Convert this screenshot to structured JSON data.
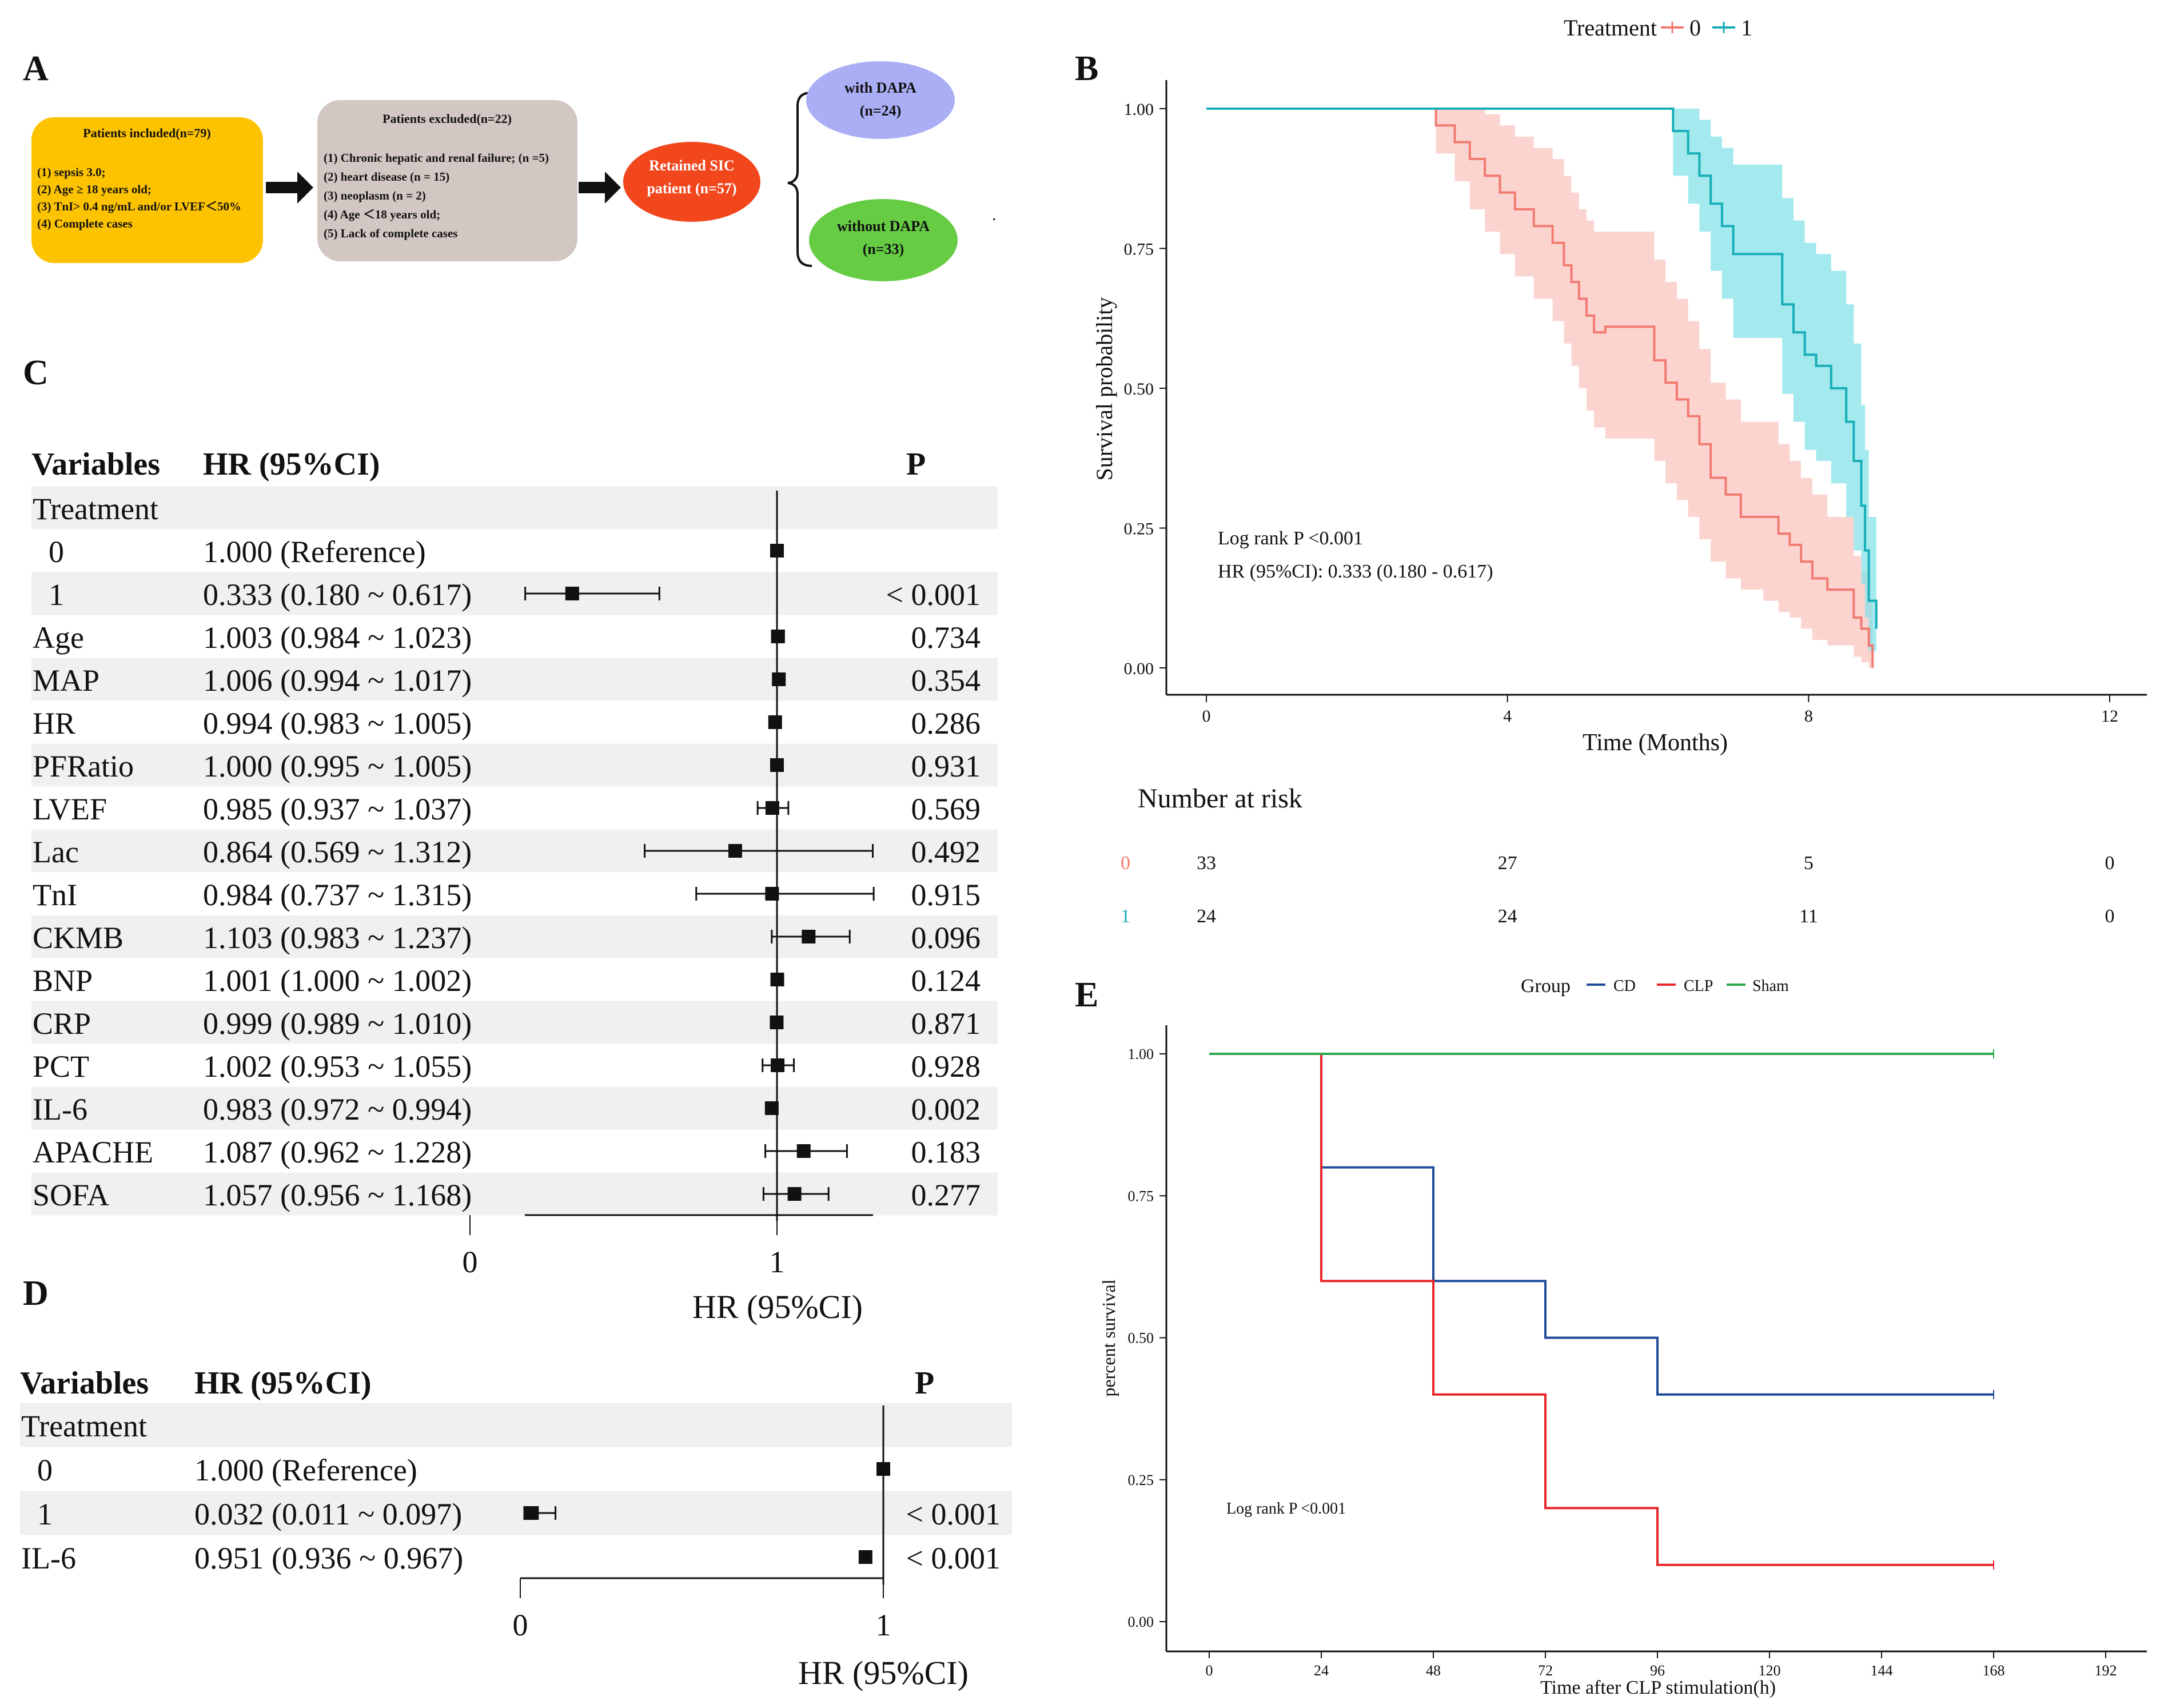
{
  "panels": {
    "A": "A",
    "B": "B",
    "C": "C",
    "D": "D",
    "E": "E"
  },
  "colors": {
    "included": "#FDC300",
    "excluded": "#D2C7C2",
    "retained": "#F2461D",
    "with_dapa": "#A9AEF5",
    "without_dapa": "#66CC44",
    "treat0": "#F27A70",
    "treat0_fill": "#FAC5C0",
    "treat1": "#17AEB8",
    "treat1_fill": "#86E2E8",
    "cd": "#1F4B99",
    "clp": "#E8262A",
    "sham": "#2AA84A",
    "stripe": "#EEF1F0"
  },
  "flowchart": {
    "included": {
      "title": "Patients included(n=79)",
      "lines": [
        "(1)  sepsis 3.0;",
        "(2) Age ≥ 18 years old;",
        "(3) TnI> 0.4 ng/mL and/or LVEF＜50%",
        "(4) Complete cases"
      ]
    },
    "excluded": {
      "title": "Patients excluded(n=22)",
      "lines": [
        "(1) Chronic hepatic and renal failure; (n =5)",
        "(2) heart disease (n = 15)",
        "(3) neoplasm (n = 2)",
        "(4) Age ＜18 years old;",
        "(5) Lack of complete cases"
      ]
    },
    "retained": [
      "Retained SIC",
      "patient (n=57)"
    ],
    "with_dapa": [
      "with DAPA",
      "(n=24)"
    ],
    "without_dapa": [
      "without DAPA",
      "(n=33)"
    ],
    "dot": "."
  },
  "forest_c": {
    "headers": {
      "variables": "Variables",
      "hr": "HR (95%CI)",
      "p": "P"
    },
    "rows": [
      {
        "label": "Treatment",
        "hr_text": "",
        "p": "",
        "hr": null,
        "lo": null,
        "hi": null,
        "indent": false
      },
      {
        "label": "0",
        "hr_text": "1.000 (Reference)",
        "p": "",
        "hr": 1.0,
        "lo": 1.0,
        "hi": 1.0,
        "indent": true
      },
      {
        "label": "1",
        "hr_text": "0.333 (0.180 ~ 0.617)",
        "p": "< 0.001",
        "hr": 0.333,
        "lo": 0.18,
        "hi": 0.617,
        "indent": true
      },
      {
        "label": "Age",
        "hr_text": "1.003 (0.984 ~ 1.023)",
        "p": "0.734",
        "hr": 1.003,
        "lo": 0.984,
        "hi": 1.023,
        "indent": false
      },
      {
        "label": "MAP",
        "hr_text": "1.006 (0.994 ~ 1.017)",
        "p": "0.354",
        "hr": 1.006,
        "lo": 0.994,
        "hi": 1.017,
        "indent": false
      },
      {
        "label": "HR",
        "hr_text": "0.994 (0.983 ~ 1.005)",
        "p": "0.286",
        "hr": 0.994,
        "lo": 0.983,
        "hi": 1.005,
        "indent": false
      },
      {
        "label": "PFRatio",
        "hr_text": "1.000 (0.995 ~ 1.005)",
        "p": "0.931",
        "hr": 1.0,
        "lo": 0.995,
        "hi": 1.005,
        "indent": false
      },
      {
        "label": "LVEF",
        "hr_text": "0.985 (0.937 ~ 1.037)",
        "p": "0.569",
        "hr": 0.985,
        "lo": 0.937,
        "hi": 1.037,
        "indent": false
      },
      {
        "label": "Lac",
        "hr_text": "0.864 (0.569 ~ 1.312)",
        "p": "0.492",
        "hr": 0.864,
        "lo": 0.569,
        "hi": 1.312,
        "indent": false
      },
      {
        "label": "TnI",
        "hr_text": "0.984 (0.737 ~ 1.315)",
        "p": "0.915",
        "hr": 0.984,
        "lo": 0.737,
        "hi": 1.315,
        "indent": false
      },
      {
        "label": "CKMB",
        "hr_text": "1.103 (0.983 ~ 1.237)",
        "p": "0.096",
        "hr": 1.103,
        "lo": 0.983,
        "hi": 1.237,
        "indent": false
      },
      {
        "label": "BNP",
        "hr_text": "1.001 (1.000 ~ 1.002)",
        "p": "0.124",
        "hr": 1.001,
        "lo": 1.0,
        "hi": 1.002,
        "indent": false
      },
      {
        "label": "CRP",
        "hr_text": "0.999 (0.989 ~ 1.010)",
        "p": "0.871",
        "hr": 0.999,
        "lo": 0.989,
        "hi": 1.01,
        "indent": false
      },
      {
        "label": "PCT",
        "hr_text": "1.002 (0.953 ~ 1.055)",
        "p": "0.928",
        "hr": 1.002,
        "lo": 0.953,
        "hi": 1.055,
        "indent": false
      },
      {
        "label": "IL-6",
        "hr_text": "0.983 (0.972 ~ 0.994)",
        "p": "0.002",
        "hr": 0.983,
        "lo": 0.972,
        "hi": 0.994,
        "indent": false
      },
      {
        "label": "APACHE",
        "hr_text": "1.087 (0.962 ~ 1.228)",
        "p": "0.183",
        "hr": 1.087,
        "lo": 0.962,
        "hi": 1.228,
        "indent": false
      },
      {
        "label": "SOFA",
        "hr_text": "1.057 (0.956 ~ 1.168)",
        "p": "0.277",
        "hr": 1.057,
        "lo": 0.956,
        "hi": 1.168,
        "indent": false
      }
    ],
    "xlabel": "HR (95%CI)",
    "ticks": [
      "0",
      "1"
    ]
  },
  "forest_d": {
    "headers": {
      "variables": "Variables",
      "hr": "HR (95%CI)",
      "p": "P"
    },
    "rows": [
      {
        "label": "Treatment",
        "hr_text": "",
        "p": "",
        "hr": null,
        "lo": null,
        "hi": null,
        "indent": false
      },
      {
        "label": "0",
        "hr_text": "1.000 (Reference)",
        "p": "",
        "hr": 1.0,
        "lo": 1.0,
        "hi": 1.0,
        "indent": true
      },
      {
        "label": "1",
        "hr_text": "0.032 (0.011 ~ 0.097)",
        "p": "< 0.001",
        "hr": 0.032,
        "lo": 0.011,
        "hi": 0.097,
        "indent": true
      },
      {
        "label": "IL-6",
        "hr_text": "0.951 (0.936 ~ 0.967)",
        "p": "< 0.001",
        "hr": 0.951,
        "lo": 0.936,
        "hi": 0.967,
        "indent": false
      }
    ],
    "xlabel": "HR (95%CI)",
    "ticks": [
      "0",
      "1"
    ]
  },
  "chart_data": [
    {
      "id": "B",
      "type": "line",
      "title": "",
      "legend_title": "Treatment",
      "legend": [
        "0",
        "1"
      ],
      "xlabel": "Time (Months)",
      "ylabel": "Survival probability",
      "xlim": [
        0,
        12
      ],
      "ylim": [
        0,
        1
      ],
      "xticks": [
        "0",
        "4",
        "8",
        "12"
      ],
      "yticks": [
        "0.00",
        "0.25",
        "0.50",
        "0.75",
        "1.00"
      ],
      "annotations": [
        "Log rank P <0.001",
        "HR (95%CI): 0.333 (0.180 - 0.617)"
      ],
      "series": [
        {
          "name": "0",
          "x": [
            0,
            3.05,
            3.05,
            3.3,
            3.5,
            3.7,
            3.9,
            4.1,
            4.35,
            4.6,
            4.75,
            4.85,
            4.95,
            5.05,
            5.15,
            5.3,
            5.55,
            5.95,
            6.1,
            6.25,
            6.4,
            6.55,
            6.7,
            6.9,
            7.1,
            7.4,
            7.6,
            7.75,
            7.9,
            8.05,
            8.25,
            8.45,
            8.6,
            8.7,
            8.8,
            8.85
          ],
          "y": [
            1.0,
            1.0,
            0.97,
            0.94,
            0.91,
            0.88,
            0.85,
            0.82,
            0.79,
            0.76,
            0.72,
            0.69,
            0.66,
            0.63,
            0.6,
            0.61,
            0.61,
            0.55,
            0.51,
            0.48,
            0.45,
            0.4,
            0.34,
            0.31,
            0.27,
            0.27,
            0.24,
            0.22,
            0.19,
            0.16,
            0.14,
            0.14,
            0.09,
            0.07,
            0.04,
            0.0
          ],
          "lower": [
            1.0,
            1.0,
            0.92,
            0.87,
            0.82,
            0.78,
            0.74,
            0.7,
            0.66,
            0.62,
            0.58,
            0.54,
            0.5,
            0.46,
            0.43,
            0.41,
            0.41,
            0.37,
            0.33,
            0.3,
            0.27,
            0.23,
            0.19,
            0.16,
            0.14,
            0.12,
            0.1,
            0.09,
            0.07,
            0.05,
            0.04,
            0.04,
            0.02,
            0.01,
            0.0,
            0.0
          ],
          "upper": [
            1.0,
            1.0,
            1.0,
            1.0,
            1.0,
            0.99,
            0.97,
            0.95,
            0.93,
            0.91,
            0.88,
            0.85,
            0.82,
            0.8,
            0.78,
            0.78,
            0.78,
            0.73,
            0.69,
            0.66,
            0.62,
            0.57,
            0.51,
            0.48,
            0.44,
            0.44,
            0.4,
            0.37,
            0.34,
            0.31,
            0.27,
            0.27,
            0.2,
            0.17,
            0.12,
            0.08
          ]
        },
        {
          "name": "1",
          "x": [
            0,
            6.2,
            6.2,
            6.4,
            6.55,
            6.7,
            6.85,
            7.0,
            7.55,
            7.65,
            7.8,
            7.95,
            8.1,
            8.3,
            8.5,
            8.6,
            8.7,
            8.75,
            8.8,
            8.9
          ],
          "y": [
            1.0,
            1.0,
            0.96,
            0.92,
            0.88,
            0.83,
            0.79,
            0.74,
            0.74,
            0.65,
            0.6,
            0.56,
            0.54,
            0.5,
            0.44,
            0.37,
            0.29,
            0.21,
            0.12,
            0.07
          ],
          "lower": [
            1.0,
            1.0,
            0.88,
            0.83,
            0.78,
            0.71,
            0.66,
            0.59,
            0.59,
            0.49,
            0.44,
            0.39,
            0.37,
            0.33,
            0.27,
            0.21,
            0.15,
            0.09,
            0.03,
            0.0
          ],
          "upper": [
            1.0,
            1.0,
            1.0,
            1.0,
            0.98,
            0.95,
            0.93,
            0.9,
            0.9,
            0.84,
            0.8,
            0.76,
            0.74,
            0.71,
            0.65,
            0.58,
            0.47,
            0.39,
            0.27,
            0.2
          ]
        }
      ]
    },
    {
      "id": "B-risk",
      "type": "table",
      "title": "Number at risk",
      "times": [
        0,
        4,
        8,
        12
      ],
      "rows": [
        {
          "strata": "0",
          "counts": [
            "33",
            "27",
            "5",
            "0"
          ]
        },
        {
          "strata": "1",
          "counts": [
            "24",
            "24",
            "11",
            "0"
          ]
        }
      ]
    },
    {
      "id": "E",
      "type": "line",
      "title": "",
      "legend_title": "Group",
      "legend": [
        "CD",
        "CLP",
        "Sham"
      ],
      "xlabel": "Time after CLP stimulation(h)",
      "ylabel": "percent survival",
      "xlim": [
        0,
        192
      ],
      "ylim": [
        0,
        1
      ],
      "xticks": [
        "0",
        "24",
        "48",
        "72",
        "96",
        "120",
        "144",
        "168",
        "192"
      ],
      "yticks": [
        "0.00",
        "0.25",
        "0.50",
        "0.75",
        "1.00"
      ],
      "annotations": [
        "Log rank P <0.001"
      ],
      "series": [
        {
          "name": "CD",
          "x": [
            0,
            24,
            24,
            48,
            48,
            72,
            72,
            96,
            96,
            168
          ],
          "y": [
            1.0,
            1.0,
            0.8,
            0.8,
            0.6,
            0.6,
            0.5,
            0.5,
            0.4,
            0.4
          ]
        },
        {
          "name": "CLP",
          "x": [
            0,
            24,
            24,
            48,
            48,
            72,
            72,
            96,
            96,
            168
          ],
          "y": [
            1.0,
            1.0,
            0.6,
            0.6,
            0.4,
            0.4,
            0.2,
            0.2,
            0.1,
            0.1
          ]
        },
        {
          "name": "Sham",
          "x": [
            0,
            168
          ],
          "y": [
            1.0,
            1.0
          ]
        }
      ]
    }
  ]
}
